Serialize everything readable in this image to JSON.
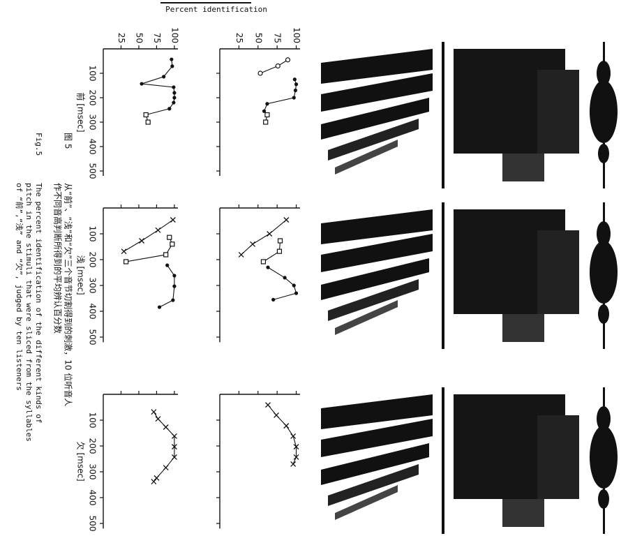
{
  "figure": {
    "ylabel": "Percent identification",
    "caption_zh_label": "图 5",
    "caption_zh": [
      "从“前”、“浅”和“欠”三个音节切割得到的刺激，10 位听音人",
      "作不同音高判断所得到的平均辨认百分数"
    ],
    "caption_en_label": "Fig.5",
    "caption_en": [
      "The percent identification of the different kinds of",
      "pitch in the stimuli that were sliced from the syllables",
      "of “前”,“浅” and “欠”, judged by ten listeners"
    ]
  },
  "chart_data": [
    {
      "type": "line",
      "xlim": [
        0,
        520
      ],
      "ylim": [
        0,
        105
      ],
      "xticks": [
        100,
        200,
        300,
        400,
        500
      ],
      "yticks": [
        25,
        50,
        75,
        100
      ],
      "series": [
        {
          "marker": "circle-open",
          "color": "#111",
          "x": [
            45,
            70,
            100
          ],
          "values": [
            89,
            76,
            53
          ]
        },
        {
          "marker": "circle-filled",
          "color": "#111",
          "x": [
            125,
            145,
            170,
            200,
            225,
            255
          ],
          "values": [
            98,
            100,
            99,
            97,
            62,
            58
          ]
        },
        {
          "marker": "square-open",
          "color": "#111",
          "x": [
            270,
            300
          ],
          "values": [
            62,
            60
          ]
        }
      ]
    },
    {
      "type": "line",
      "xlabel": "前 [msec]",
      "xlim": [
        0,
        520
      ],
      "ylim": [
        0,
        105
      ],
      "xticks": [
        100,
        200,
        300,
        400,
        500
      ],
      "yticks": [
        25,
        50,
        75,
        100
      ],
      "series": [
        {
          "marker": "circle-filled",
          "color": "#111",
          "x": [
            43,
            71,
            114,
            143,
            157,
            180,
            200,
            220,
            245,
            270
          ],
          "values": [
            96,
            97,
            85,
            54,
            99,
            100,
            100,
            99,
            93,
            60
          ]
        },
        {
          "marker": "square-open",
          "color": "#111",
          "x": [
            270,
            300
          ],
          "values": [
            60,
            63
          ]
        }
      ]
    },
    {
      "type": "line",
      "xlim": [
        0,
        520
      ],
      "ylim": [
        0,
        105
      ],
      "xticks": [
        100,
        200,
        300,
        400,
        500
      ],
      "yticks": [
        25,
        50,
        75,
        100
      ],
      "series": [
        {
          "marker": "x",
          "color": "#111",
          "x": [
            46,
            100,
            140,
            181
          ],
          "values": [
            87,
            65,
            43,
            28
          ]
        },
        {
          "marker": "square-open",
          "color": "#111",
          "x": [
            127,
            168,
            208
          ],
          "values": [
            79,
            78,
            57
          ]
        },
        {
          "marker": "circle-filled",
          "color": "#111",
          "x": [
            230,
            270,
            300,
            330,
            355
          ],
          "values": [
            63,
            85,
            97,
            100,
            70
          ]
        }
      ]
    },
    {
      "type": "line",
      "xlabel": "浅 [msec]",
      "xlim": [
        0,
        520
      ],
      "ylim": [
        0,
        105
      ],
      "xticks": [
        100,
        200,
        300,
        400,
        500
      ],
      "yticks": [
        25,
        50,
        75,
        100
      ],
      "series": [
        {
          "marker": "x",
          "color": "#111",
          "x": [
            46,
            86,
            127,
            168
          ],
          "values": [
            98,
            77,
            54,
            29
          ]
        },
        {
          "marker": "square-open",
          "color": "#111",
          "x": [
            114,
            140,
            181,
            208
          ],
          "values": [
            93,
            97,
            88,
            32
          ]
        },
        {
          "marker": "circle-filled",
          "color": "#111",
          "x": [
            222,
            262,
            303,
            357,
            384
          ],
          "values": [
            90,
            100,
            100,
            98,
            79
          ]
        }
      ]
    },
    {
      "type": "line",
      "xlim": [
        0,
        520
      ],
      "ylim": [
        0,
        105
      ],
      "xticks": [
        100,
        200,
        300,
        400,
        500
      ],
      "yticks": [
        25,
        50,
        75,
        100
      ],
      "series": [
        {
          "marker": "x",
          "color": "#111",
          "x": [
            41,
            81,
            122,
            162,
            203,
            243,
            270
          ],
          "values": [
            63,
            74,
            87,
            96,
            100,
            100,
            96
          ]
        }
      ]
    },
    {
      "type": "line",
      "xlabel": "欠 [msec]",
      "xlim": [
        0,
        520
      ],
      "ylim": [
        0,
        105
      ],
      "xticks": [
        100,
        200,
        300,
        400,
        500
      ],
      "yticks": [
        25,
        50,
        75,
        100
      ],
      "series": [
        {
          "marker": "x",
          "color": "#111",
          "x": [
            68,
            95,
            127,
            162,
            203,
            243,
            284,
            324,
            338
          ],
          "values": [
            71,
            77,
            88,
            100,
            100,
            100,
            88,
            75,
            71
          ]
        }
      ]
    }
  ]
}
